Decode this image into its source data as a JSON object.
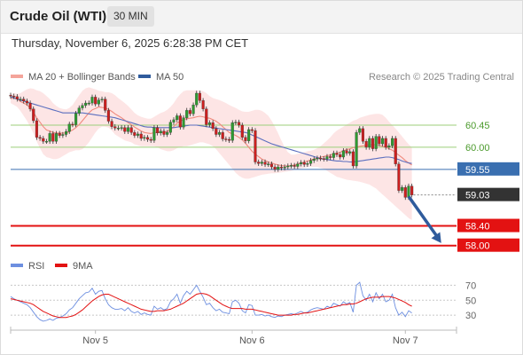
{
  "header": {
    "title": "Crude Oil (WTI)",
    "interval": "30 MIN",
    "datetime": "Thursday, November 6, 2025 6:28:38 PM CET"
  },
  "colors": {
    "bull": "#2e9a31",
    "bear": "#cc1f1f",
    "ma20": "#f08a7e",
    "band_fill": "#fde1e1",
    "ma50": "#5b6fbf",
    "support_line": "#e31212",
    "pivot_line": "#3a6fb0",
    "resistance_line": "#9ccf7a",
    "price_tag": "#333333",
    "arrow": "#2f5b9c",
    "rsi": "#6d8fe0",
    "rsi_ma": "#e31212"
  },
  "chart_data": [
    {
      "type": "candlestick",
      "legend": [
        {
          "name": "MA 20 + Bollinger Bands",
          "color": "#f4a49a"
        },
        {
          "name": "MA 50",
          "color": "#2f5b9c"
        }
      ],
      "source_note": "Research © 2025 Trading Central",
      "ylim": [
        57.85,
        61.1
      ],
      "x_ticks": [
        {
          "index": 26,
          "label": "Nov 5"
        },
        {
          "index": 74,
          "label": "Nov 6"
        },
        {
          "index": 121,
          "label": "Nov 7"
        }
      ],
      "price_levels": [
        {
          "value": 60.45,
          "label": "60.45",
          "style": "resistance"
        },
        {
          "value": 60.0,
          "label": "60.00",
          "style": "resistance"
        },
        {
          "value": 59.55,
          "label": "59.55",
          "style": "pivot"
        },
        {
          "value": 58.4,
          "label": "58.40",
          "style": "support"
        },
        {
          "value": 58.0,
          "label": "58.00",
          "style": "support"
        }
      ],
      "last_price": {
        "value": 59.03,
        "label": "59.03"
      },
      "arrow": {
        "from": [
          122,
          59.0
        ],
        "to": [
          132,
          58.05
        ]
      },
      "closes": [
        61.04,
        61.03,
        60.98,
        60.98,
        60.94,
        60.9,
        60.78,
        60.54,
        60.2,
        60.18,
        60.12,
        60.12,
        60.28,
        60.12,
        60.28,
        60.24,
        60.26,
        60.32,
        60.47,
        60.46,
        60.69,
        60.8,
        60.85,
        60.9,
        60.9,
        61.02,
        60.88,
        60.96,
        60.98,
        60.75,
        60.53,
        60.42,
        60.39,
        60.39,
        60.4,
        60.32,
        60.4,
        60.3,
        60.24,
        60.27,
        60.18,
        60.2,
        60.16,
        60.14,
        60.4,
        60.29,
        60.33,
        60.26,
        60.3,
        60.51,
        60.56,
        60.64,
        60.41,
        60.6,
        60.75,
        60.68,
        60.86,
        61.1,
        60.95,
        60.78,
        60.46,
        60.5,
        60.38,
        60.26,
        60.3,
        60.17,
        60.16,
        60.14,
        60.5,
        60.51,
        60.45,
        60.2,
        60.13,
        60.36,
        60.34,
        59.7,
        59.67,
        59.7,
        59.65,
        59.66,
        59.6,
        59.55,
        59.6,
        59.58,
        59.6,
        59.62,
        59.63,
        59.61,
        59.66,
        59.69,
        59.65,
        59.67,
        59.73,
        59.76,
        59.78,
        59.77,
        59.76,
        59.81,
        59.79,
        59.88,
        59.85,
        59.8,
        59.93,
        59.88,
        59.91,
        59.62,
        60.3,
        60.38,
        60.12,
        60.0,
        60.18,
        59.97,
        60.22,
        60.07,
        60.18,
        60.0,
        60.03,
        60.18,
        59.66,
        59.12,
        59.18,
        58.98,
        59.21,
        59.03
      ],
      "ma20": [
        60.99,
        61.0,
        60.98,
        60.93,
        60.9,
        60.86,
        60.8,
        60.71,
        60.6,
        60.51,
        60.42,
        60.35,
        60.33,
        60.3,
        60.29,
        60.29,
        60.29,
        60.29,
        60.32,
        60.35,
        60.4,
        60.46,
        60.54,
        60.62,
        60.7,
        60.76,
        60.79,
        60.82,
        60.81,
        60.8,
        60.77,
        60.73,
        60.68,
        60.64,
        60.6,
        60.55,
        60.5,
        60.46,
        60.41,
        60.37,
        60.33,
        60.3,
        60.29,
        60.28,
        60.3,
        60.3,
        60.3,
        60.3,
        60.32,
        60.36,
        60.42,
        60.49,
        60.53,
        60.57,
        60.58,
        60.59,
        60.6,
        60.62,
        60.63,
        60.62,
        60.6,
        60.59,
        60.56,
        60.53,
        60.48,
        60.42,
        60.36,
        60.3,
        60.27,
        60.24,
        60.2,
        60.15,
        60.08,
        60.0,
        59.92,
        59.86,
        59.81,
        59.76,
        59.73,
        59.7,
        59.68,
        59.66,
        59.64,
        59.63,
        59.62,
        59.62,
        59.63,
        59.64,
        59.66,
        59.68,
        59.7,
        59.72,
        59.74,
        59.76,
        59.78,
        59.8,
        59.81,
        59.83,
        59.84,
        59.86,
        59.88,
        59.9,
        59.93,
        59.95,
        59.97,
        59.99,
        60.0,
        60.02,
        60.03,
        60.04,
        60.05,
        60.05,
        60.05,
        60.04,
        60.02,
        60.0,
        59.97,
        59.94,
        59.89,
        59.84,
        59.79,
        59.73,
        59.68,
        59.64
      ],
      "band_upper": [
        61.08,
        61.1,
        61.09,
        61.1,
        61.14,
        61.18,
        61.2,
        61.19,
        61.16,
        61.14,
        61.1,
        61.04,
        60.98,
        60.9,
        60.84,
        60.8,
        60.78,
        60.77,
        60.8,
        60.86,
        60.96,
        61.06,
        61.15,
        61.2,
        61.22,
        61.2,
        61.18,
        61.15,
        61.14,
        61.12,
        61.12,
        61.1,
        61.06,
        61.0,
        60.95,
        60.9,
        60.84,
        60.77,
        60.7,
        60.65,
        60.62,
        60.6,
        60.58,
        60.58,
        60.62,
        60.66,
        60.7,
        60.72,
        60.76,
        60.82,
        60.9,
        61.0,
        61.08,
        61.14,
        61.16,
        61.16,
        61.16,
        61.16,
        61.16,
        61.14,
        61.1,
        61.04,
        61.0,
        60.98,
        60.96,
        60.93,
        60.9,
        60.86,
        60.83,
        60.8,
        60.76,
        60.73,
        60.72,
        60.72,
        60.74,
        60.76,
        60.76,
        60.74,
        60.7,
        60.64,
        60.54,
        60.42,
        60.28,
        60.14,
        60.0,
        59.9,
        59.85,
        59.85,
        59.87,
        59.88,
        59.9,
        59.92,
        59.93,
        59.95,
        59.98,
        60.02,
        60.08,
        60.14,
        60.2,
        60.28,
        60.34,
        60.38,
        60.42,
        60.46,
        60.5,
        60.54,
        60.56,
        60.6,
        60.62,
        60.64,
        60.66,
        60.67,
        60.68,
        60.68,
        60.66,
        60.6,
        60.52,
        60.45,
        60.38,
        60.3,
        60.22,
        60.14,
        60.06,
        60.0
      ],
      "band_lower": [
        60.9,
        60.86,
        60.82,
        60.74,
        60.64,
        60.54,
        60.42,
        60.28,
        60.12,
        59.98,
        59.86,
        59.8,
        59.78,
        59.76,
        59.76,
        59.78,
        59.82,
        59.86,
        59.9,
        59.92,
        59.94,
        59.94,
        59.96,
        60.02,
        60.1,
        60.2,
        60.3,
        60.38,
        60.42,
        60.42,
        60.4,
        60.34,
        60.26,
        60.22,
        60.18,
        60.14,
        60.12,
        60.1,
        60.06,
        60.04,
        60.02,
        60.02,
        60.02,
        60.02,
        60.02,
        60.0,
        59.96,
        59.94,
        59.92,
        59.92,
        59.94,
        59.98,
        60.0,
        60.02,
        60.02,
        60.04,
        60.06,
        60.08,
        60.1,
        60.1,
        60.08,
        60.06,
        60.02,
        59.96,
        59.88,
        59.8,
        59.72,
        59.64,
        59.56,
        59.48,
        59.42,
        59.38,
        59.36,
        59.36,
        59.38,
        59.4,
        59.42,
        59.44,
        59.45,
        59.46,
        59.47,
        59.47,
        59.48,
        59.49,
        59.5,
        59.51,
        59.52,
        59.54,
        59.55,
        59.57,
        59.58,
        59.6,
        59.6,
        59.6,
        59.6,
        59.58,
        59.56,
        59.52,
        59.48,
        59.44,
        59.4,
        59.38,
        59.36,
        59.34,
        59.33,
        59.32,
        59.31,
        59.3,
        59.28,
        59.26,
        59.24,
        59.2,
        59.16,
        59.1,
        59.04,
        58.98,
        58.92,
        58.86,
        58.8,
        58.74,
        58.68,
        58.62,
        58.56,
        58.52
      ],
      "ma50": [
        61.03,
        61.0,
        60.98,
        60.96,
        60.94,
        60.92,
        60.9,
        60.88,
        60.86,
        60.84,
        60.82,
        60.8,
        60.78,
        60.76,
        60.74,
        60.72,
        60.7,
        60.7,
        60.7,
        60.7,
        60.7,
        60.7,
        60.7,
        60.69,
        60.68,
        60.67,
        60.66,
        60.65,
        60.64,
        60.63,
        60.62,
        60.61,
        60.6,
        60.58,
        60.56,
        60.54,
        60.52,
        60.5,
        60.48,
        60.46,
        60.44,
        60.42,
        60.41,
        60.41,
        60.4,
        60.4,
        60.4,
        60.4,
        60.4,
        60.4,
        60.4,
        60.41,
        60.42,
        60.43,
        60.44,
        60.45,
        60.45,
        60.45,
        60.44,
        60.43,
        60.42,
        60.41,
        60.4,
        60.39,
        60.38,
        60.37,
        60.36,
        60.35,
        60.34,
        60.33,
        60.32,
        60.31,
        60.3,
        60.28,
        60.25,
        60.22,
        60.19,
        60.16,
        60.13,
        60.1,
        60.07,
        60.05,
        60.03,
        60.01,
        59.99,
        59.97,
        59.95,
        59.93,
        59.91,
        59.89,
        59.87,
        59.85,
        59.83,
        59.81,
        59.79,
        59.77,
        59.76,
        59.75,
        59.74,
        59.73,
        59.72,
        59.72,
        59.71,
        59.71,
        59.7,
        59.7,
        59.71,
        59.72,
        59.73,
        59.74,
        59.75,
        59.76,
        59.77,
        59.78,
        59.79,
        59.8,
        59.8,
        59.79,
        59.77,
        59.75,
        59.72,
        59.7,
        59.68,
        59.67
      ]
    },
    {
      "type": "line",
      "legend": [
        {
          "name": "RSI",
          "color": "#6d8fe0"
        },
        {
          "name": "9MA",
          "color": "#e31212"
        }
      ],
      "ylim": [
        10,
        80
      ],
      "y_ticks": [
        70,
        50,
        30
      ],
      "rsi": [
        55,
        52,
        50,
        48,
        46,
        44,
        40,
        34,
        28,
        24,
        22,
        23,
        25,
        23,
        26,
        27,
        29,
        32,
        37,
        40,
        46,
        52,
        56,
        60,
        61,
        66,
        58,
        62,
        63,
        52,
        44,
        40,
        38,
        38,
        39,
        36,
        40,
        35,
        33,
        35,
        31,
        33,
        31,
        30,
        42,
        38,
        40,
        37,
        39,
        48,
        52,
        58,
        46,
        56,
        62,
        58,
        64,
        70,
        62,
        54,
        44,
        46,
        40,
        36,
        38,
        34,
        33,
        32,
        48,
        50,
        46,
        36,
        33,
        44,
        43,
        30,
        30,
        31,
        29,
        30,
        28,
        27,
        29,
        28,
        30,
        31,
        32,
        31,
        33,
        35,
        33,
        34,
        37,
        39,
        40,
        39,
        38,
        42,
        40,
        46,
        44,
        42,
        48,
        45,
        47,
        34,
        70,
        74,
        56,
        50,
        58,
        48,
        60,
        52,
        58,
        48,
        50,
        58,
        40,
        30,
        34,
        28,
        36,
        33
      ],
      "ma9": [
        52,
        51,
        50,
        49,
        48,
        47,
        46,
        44,
        41,
        38,
        35,
        33,
        31,
        29,
        28,
        27,
        27,
        27,
        28,
        29,
        31,
        34,
        37,
        41,
        45,
        49,
        52,
        55,
        57,
        58,
        58,
        56,
        54,
        52,
        50,
        48,
        46,
        44,
        42,
        40,
        38,
        37,
        36,
        35,
        35,
        36,
        36,
        36,
        37,
        38,
        40,
        42,
        44,
        46,
        49,
        52,
        55,
        58,
        59,
        59,
        58,
        56,
        53,
        50,
        47,
        44,
        42,
        40,
        39,
        39,
        39,
        39,
        38,
        38,
        38,
        37,
        36,
        35,
        34,
        33,
        32,
        31,
        30,
        30,
        30,
        30,
        30,
        31,
        31,
        32,
        33,
        33,
        34,
        35,
        36,
        37,
        38,
        39,
        40,
        41,
        42,
        43,
        44,
        44,
        45,
        45,
        46,
        48,
        50,
        52,
        53,
        54,
        54,
        54,
        55,
        55,
        55,
        54,
        53,
        51,
        49,
        47,
        44,
        42
      ]
    }
  ]
}
